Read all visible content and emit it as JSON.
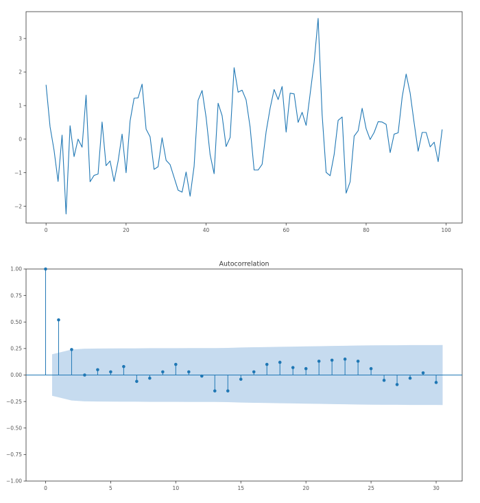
{
  "chart_data": [
    {
      "type": "line",
      "title": "",
      "xlabel": "",
      "ylabel": "",
      "xlim": [
        -5,
        104
      ],
      "ylim": [
        -2.5,
        3.8
      ],
      "xticks": [
        0,
        20,
        40,
        60,
        80,
        100
      ],
      "yticks": [
        -2,
        -1,
        0,
        1,
        2,
        3
      ],
      "xtick_labels": [
        "0",
        "20",
        "40",
        "60",
        "80",
        "100"
      ],
      "ytick_labels": [
        "−2",
        "−1",
        "0",
        "1",
        "2",
        "3"
      ],
      "grid": false,
      "legend": "none",
      "color": "#1f77b4",
      "x": [
        0,
        1,
        2,
        3,
        4,
        5,
        6,
        7,
        8,
        9,
        10,
        11,
        12,
        13,
        14,
        15,
        16,
        17,
        18,
        19,
        20,
        21,
        22,
        23,
        24,
        25,
        26,
        27,
        28,
        29,
        30,
        31,
        32,
        33,
        34,
        35,
        36,
        37,
        38,
        39,
        40,
        41,
        42,
        43,
        44,
        45,
        46,
        47,
        48,
        49,
        50,
        51,
        52,
        53,
        54,
        55,
        56,
        57,
        58,
        59,
        60,
        61,
        62,
        63,
        64,
        65,
        66,
        67,
        68,
        69,
        70,
        71,
        72,
        73,
        74,
        75,
        76,
        77,
        78,
        79,
        80,
        81,
        82,
        83,
        84,
        85,
        86,
        87,
        88,
        89,
        90,
        91,
        92,
        93,
        94,
        95,
        96,
        97,
        98,
        99
      ],
      "values": [
        1.62,
        0.37,
        -0.33,
        -1.26,
        0.12,
        -2.23,
        0.4,
        -0.52,
        0.0,
        -0.24,
        1.31,
        -1.27,
        -1.08,
        -1.04,
        0.51,
        -0.79,
        -0.65,
        -1.26,
        -0.66,
        0.15,
        -1.0,
        0.54,
        1.22,
        1.23,
        1.64,
        0.3,
        0.07,
        -0.9,
        -0.82,
        0.04,
        -0.63,
        -0.76,
        -1.14,
        -1.52,
        -1.58,
        -0.98,
        -1.7,
        -0.81,
        1.16,
        1.45,
        0.65,
        -0.46,
        -1.03,
        1.07,
        0.7,
        -0.22,
        0.05,
        2.13,
        1.4,
        1.46,
        1.17,
        0.36,
        -0.92,
        -0.92,
        -0.75,
        0.22,
        0.92,
        1.48,
        1.18,
        1.57,
        0.21,
        1.37,
        1.35,
        0.5,
        0.8,
        0.41,
        1.35,
        2.29,
        3.6,
        0.73,
        -0.99,
        -1.09,
        -0.46,
        0.56,
        0.66,
        -1.61,
        -1.27,
        0.09,
        0.25,
        0.92,
        0.31,
        -0.01,
        0.2,
        0.52,
        0.51,
        0.44,
        -0.4,
        0.15,
        0.19,
        1.25,
        1.94,
        1.37,
        0.48,
        -0.36,
        0.2,
        0.2,
        -0.23,
        -0.09,
        -0.67,
        0.29
      ]
    },
    {
      "type": "stem",
      "title": "Autocorrelation",
      "xlabel": "",
      "ylabel": "",
      "xlim": [
        -1.5,
        32
      ],
      "ylim": [
        -1.0,
        1.0
      ],
      "xticks": [
        0,
        5,
        10,
        15,
        20,
        25,
        30
      ],
      "yticks": [
        -1.0,
        -0.75,
        -0.5,
        -0.25,
        0.0,
        0.25,
        0.5,
        0.75,
        1.0
      ],
      "xtick_labels": [
        "0",
        "5",
        "10",
        "15",
        "20",
        "25",
        "30"
      ],
      "ytick_labels": [
        "−1.00",
        "−0.75",
        "−0.50",
        "−0.25",
        "0.00",
        "0.25",
        "0.50",
        "0.75",
        "1.00"
      ],
      "grid": false,
      "legend": "none",
      "color": "#1f77b4",
      "band_color": "#c6dbef",
      "lags": [
        0,
        1,
        2,
        3,
        4,
        5,
        6,
        7,
        8,
        9,
        10,
        11,
        12,
        13,
        14,
        15,
        16,
        17,
        18,
        19,
        20,
        21,
        22,
        23,
        24,
        25,
        26,
        27,
        28,
        29,
        30
      ],
      "values": [
        1.0,
        0.52,
        0.24,
        0.0,
        0.05,
        0.03,
        0.08,
        -0.06,
        -0.03,
        0.03,
        0.1,
        0.03,
        -0.01,
        -0.15,
        -0.15,
        -0.04,
        0.03,
        0.1,
        0.12,
        0.07,
        0.06,
        0.13,
        0.14,
        0.15,
        0.13,
        0.06,
        -0.05,
        -0.09,
        -0.03,
        0.02,
        -0.07
      ],
      "confidence_band": {
        "x": [
          0.5,
          1,
          2,
          3,
          4,
          5,
          6,
          7,
          8,
          9,
          10,
          11,
          12,
          13,
          14,
          15,
          16,
          17,
          18,
          19,
          20,
          21,
          22,
          23,
          24,
          25,
          26,
          27,
          28,
          29,
          30,
          30.5
        ],
        "upper": [
          0.196,
          0.21,
          0.24,
          0.248,
          0.25,
          0.251,
          0.252,
          0.252,
          0.253,
          0.253,
          0.253,
          0.254,
          0.254,
          0.254,
          0.256,
          0.26,
          0.262,
          0.264,
          0.266,
          0.268,
          0.27,
          0.272,
          0.274,
          0.276,
          0.278,
          0.28,
          0.281,
          0.281,
          0.282,
          0.282,
          0.282,
          0.283
        ]
      }
    }
  ]
}
